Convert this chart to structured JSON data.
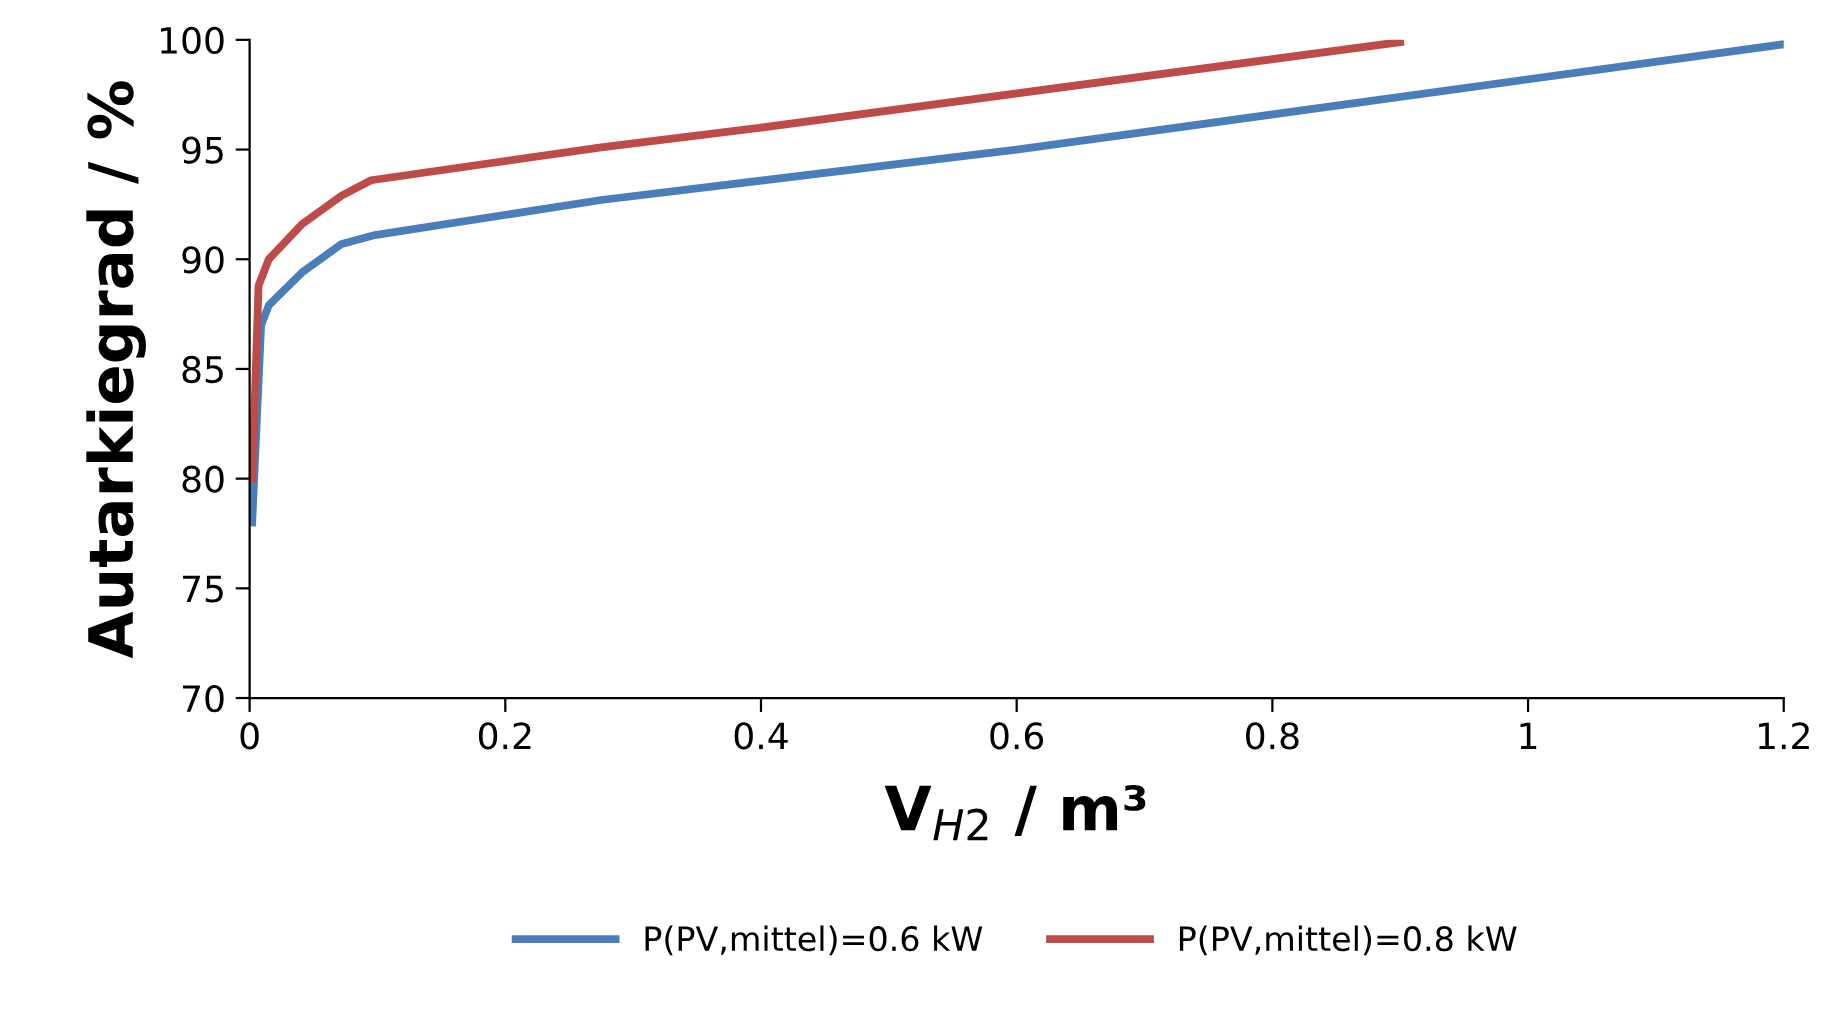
{
  "chart_data": {
    "type": "line",
    "xlabel": "V$_{H2}$ / m³",
    "ylabel": "Autarkiegrad / %",
    "xlim": [
      0,
      1.2
    ],
    "xticks": [
      0,
      0.2,
      0.4,
      0.6,
      0.8,
      1,
      1.2
    ],
    "ylim": [
      70,
      100
    ],
    "yticks": [
      70,
      75,
      80,
      85,
      90,
      95,
      100
    ],
    "grid": false,
    "legend": "bottom",
    "marker": "none",
    "line_style": "solid",
    "series": [
      {
        "name": "P(PV,mittel)=0.6 kW",
        "color": "#4a7ebb",
        "x": [
          0.002,
          0.009,
          0.015,
          0.041,
          0.072,
          0.098,
          0.275,
          0.6,
          1.2
        ],
        "values": [
          78.0,
          87.0,
          87.9,
          89.4,
          90.7,
          91.1,
          92.7,
          95.0,
          99.8
        ]
      },
      {
        "name": "P(PV,mittel)=0.8 kW",
        "color": "#be4b48",
        "x": [
          0.002,
          0.007,
          0.015,
          0.041,
          0.072,
          0.095,
          0.275,
          0.4,
          0.9
        ],
        "values": [
          80.0,
          88.8,
          90.0,
          91.6,
          92.9,
          93.6,
          95.1,
          96.0,
          99.9
        ]
      }
    ]
  }
}
